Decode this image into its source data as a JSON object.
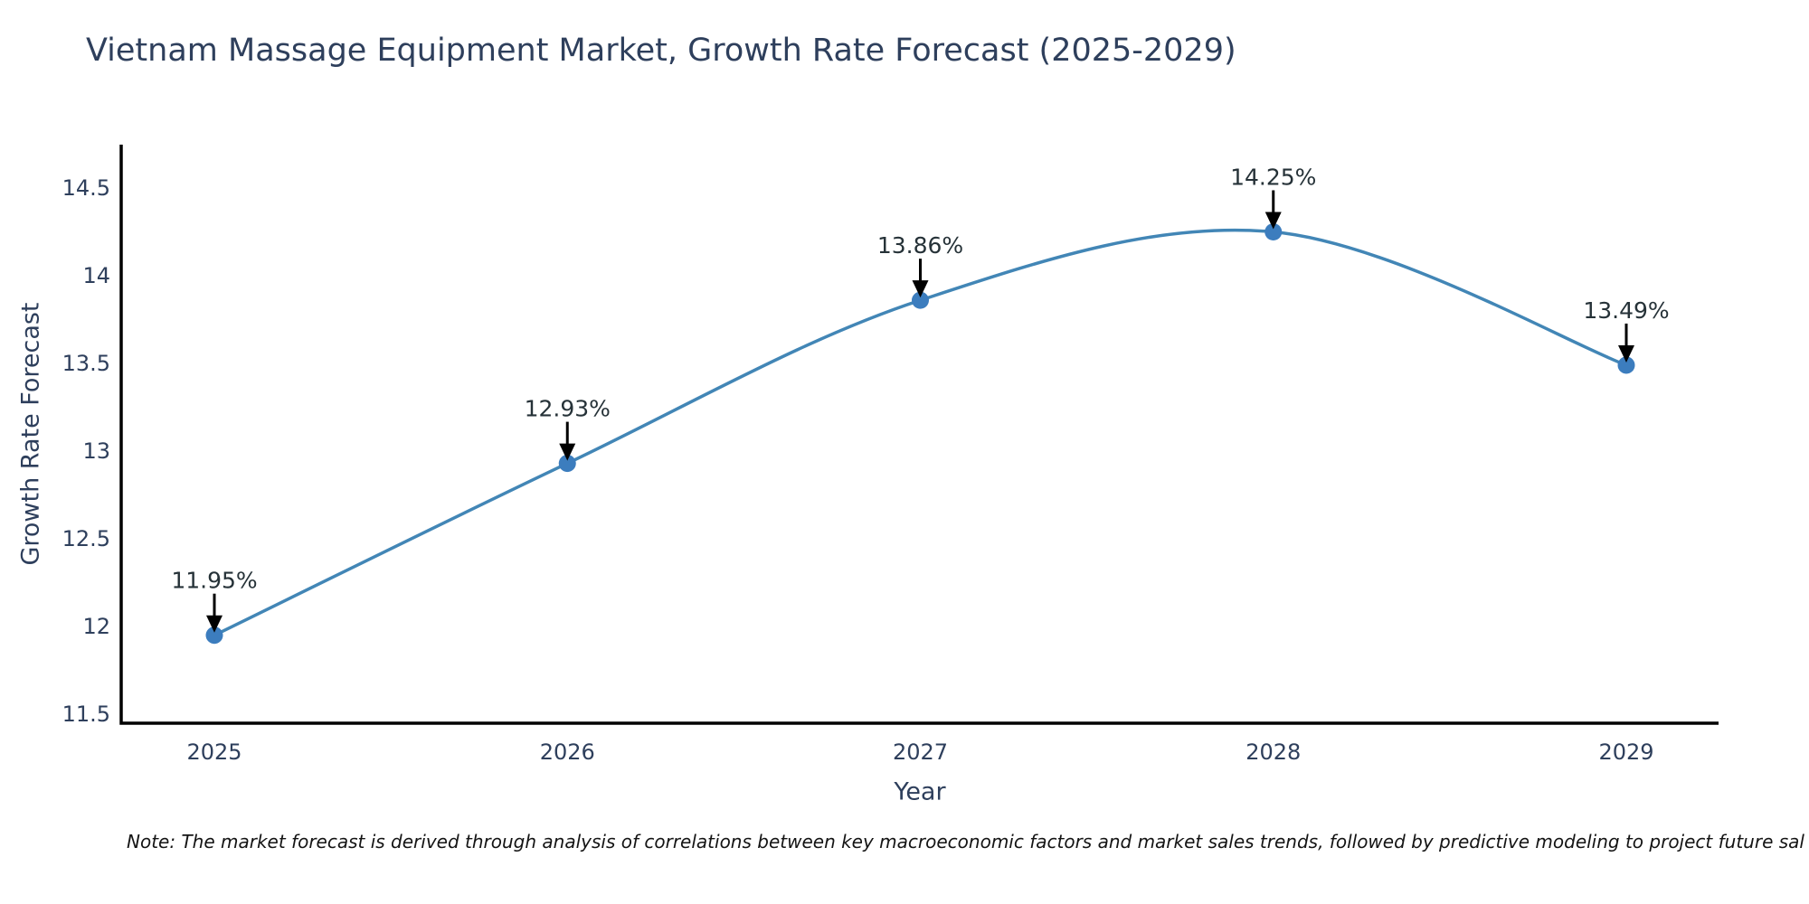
{
  "title": "Vietnam Massage Equipment Market, Growth Rate Forecast (2025-2029)",
  "note": "Note: The market forecast is derived through analysis of correlations between key macroeconomic factors and market sales trends, followed by predictive modeling to project future sal",
  "chart_data": {
    "type": "line",
    "x": [
      2025,
      2026,
      2027,
      2028,
      2029
    ],
    "series": [
      {
        "name": "Growth Rate Forecast",
        "values": [
          11.95,
          12.93,
          13.86,
          14.25,
          13.49
        ]
      }
    ],
    "point_labels": [
      "11.95%",
      "12.93%",
      "13.86%",
      "14.25%",
      "13.49%"
    ],
    "title": "Vietnam Massage Equipment Market, Growth Rate Forecast (2025-2029)",
    "xlabel": "Year",
    "ylabel": "Growth Rate Forecast",
    "ylim": [
      11.5,
      14.5
    ],
    "yticks": [
      11.5,
      12,
      12.5,
      13,
      13.5,
      14,
      14.5
    ],
    "grid": false,
    "legend": "none",
    "smoothed_line": true,
    "annotations_arrow": "down-black",
    "colors": {
      "line": "#4286b6",
      "marker": "#3c7dbe",
      "axis": "#000000",
      "tick_text": "#2e3f5c",
      "annotation_text": "#263238",
      "arrow": "#000000"
    }
  }
}
